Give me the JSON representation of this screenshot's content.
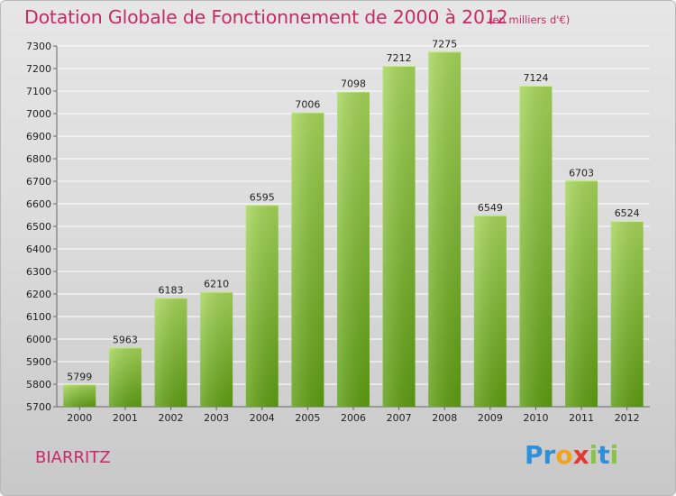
{
  "title": "Dotation Globale de Fonctionnement de 2000 à 2012",
  "subtitle": "(en milliers d'€)",
  "commune": "BIARRITZ",
  "logo": {
    "letters": [
      "P",
      "r",
      "o",
      "x",
      "i",
      "t",
      "i"
    ],
    "colors": [
      "#2f8fd8",
      "#2f8fd8",
      "#f2a21b",
      "#e53935",
      "#8bc34a",
      "#2f8fd8",
      "#8bc34a"
    ]
  },
  "colors": {
    "bar_top": "#a6d65a",
    "bar_bottom": "#5e9e12",
    "accent": "#c72b63",
    "grid": "#ffffff"
  },
  "chart_data": {
    "type": "bar",
    "title": "Dotation Globale de Fonctionnement de 2000 à 2012",
    "subtitle": "(en milliers d'€)",
    "xlabel": "",
    "ylabel": "",
    "categories": [
      "2000",
      "2001",
      "2002",
      "2003",
      "2004",
      "2005",
      "2006",
      "2007",
      "2008",
      "2009",
      "2010",
      "2011",
      "2012"
    ],
    "values": [
      5799,
      5963,
      6183,
      6210,
      6595,
      7006,
      7098,
      7212,
      7275,
      6549,
      7124,
      6703,
      6524
    ],
    "ylim": [
      5700,
      7300
    ],
    "yticks": [
      5700,
      5800,
      5900,
      6000,
      6100,
      6200,
      6300,
      6400,
      6500,
      6600,
      6700,
      6800,
      6900,
      7000,
      7100,
      7200,
      7300
    ],
    "grid": true,
    "legend": "none"
  }
}
